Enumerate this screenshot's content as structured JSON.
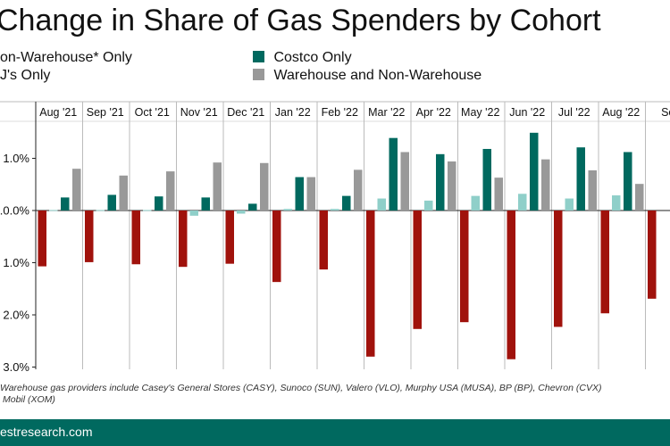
{
  "chart_data": {
    "type": "bar",
    "title": "Change in Share of Gas Spenders by Cohort",
    "categories": [
      "Aug '21",
      "Sep '21",
      "Oct '21",
      "Nov '21",
      "Dec '21",
      "Jan '22",
      "Feb '22",
      "Mar '22",
      "Apr '22",
      "May '22",
      "Jun '22",
      "Jul '22",
      "Aug '22",
      "Se"
    ],
    "series": [
      {
        "name": "Non-Warehouse* Only",
        "legend_label": "on-Warehouse* Only",
        "color": "#a0120c",
        "values": [
          -1.07,
          -0.99,
          -1.03,
          -1.08,
          -1.02,
          -1.37,
          -1.13,
          -2.8,
          -2.27,
          -2.14,
          -2.85,
          -2.23,
          -1.97,
          -1.69
        ]
      },
      {
        "name": "BJ's Only",
        "legend_label": "J's Only",
        "color": "#8fcfc9",
        "values": [
          0.01,
          0.01,
          0.01,
          -0.1,
          -0.06,
          0.03,
          0.03,
          0.23,
          0.19,
          0.28,
          0.32,
          0.23,
          0.29,
          0.0
        ]
      },
      {
        "name": "Costco Only",
        "legend_label": "Costco Only",
        "color": "#00695f",
        "values": [
          0.25,
          0.3,
          0.27,
          0.25,
          0.13,
          0.64,
          0.28,
          1.39,
          1.08,
          1.18,
          1.49,
          1.21,
          1.12,
          0.0
        ]
      },
      {
        "name": "Warehouse and Non-Warehouse",
        "legend_label": "Warehouse and Non-Warehouse",
        "color": "#999999",
        "values": [
          0.8,
          0.67,
          0.75,
          0.92,
          0.91,
          0.64,
          0.78,
          1.12,
          0.94,
          0.63,
          0.98,
          0.77,
          0.51,
          0.0
        ]
      }
    ],
    "ytick_values": [
      1.0,
      0.0,
      -1.0,
      -2.0,
      -3.0
    ],
    "ytick_labels": [
      "1.0%",
      ".0.0%",
      "1.0%",
      "2.0%",
      "3.0%"
    ],
    "ylim": [
      -3.05,
      1.7
    ],
    "grid": false,
    "legend_position": "top"
  },
  "footnote": {
    "line1": "Warehouse gas providers include Casey's General Stores (CASY), Sunoco (SUN), Valero (VLO), Murphy USA (MUSA), BP (BP), Chevron (CVX)",
    "line2": "Mobil (XOM)"
  },
  "footer": {
    "text": "estresearch.com"
  },
  "colors": {
    "footer_background": "#00695f",
    "axis": "#222222",
    "separator": "#bbbbbb"
  }
}
